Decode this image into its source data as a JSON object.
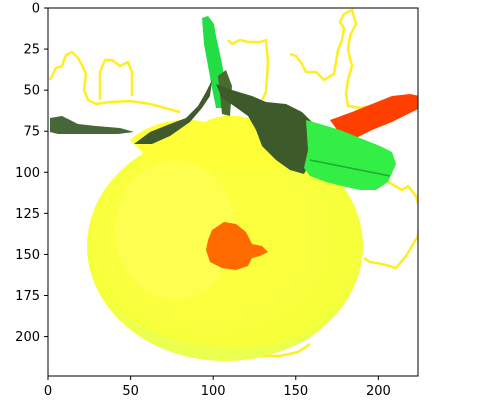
{
  "chart_data": {
    "type": "image",
    "title": "",
    "xlabel": "",
    "ylabel": "",
    "xlim": [
      0,
      224
    ],
    "ylim": [
      224,
      0
    ],
    "grid": false,
    "x_ticks": [
      0,
      50,
      100,
      150,
      200
    ],
    "y_ticks": [
      0,
      25,
      50,
      75,
      100,
      125,
      150,
      175,
      200
    ],
    "image_content": "apple-with-leaves-segmentation-overlay",
    "colors": {
      "fruit": "#ffff33",
      "leaf_dark": "#3e5a2c",
      "leaf_bright": "#33ee44",
      "stem": "#22dd44",
      "spot": "#ff6a00",
      "red_leaf": "#ff3b00",
      "contour": "#ffee00",
      "background": "#ffffff"
    }
  }
}
